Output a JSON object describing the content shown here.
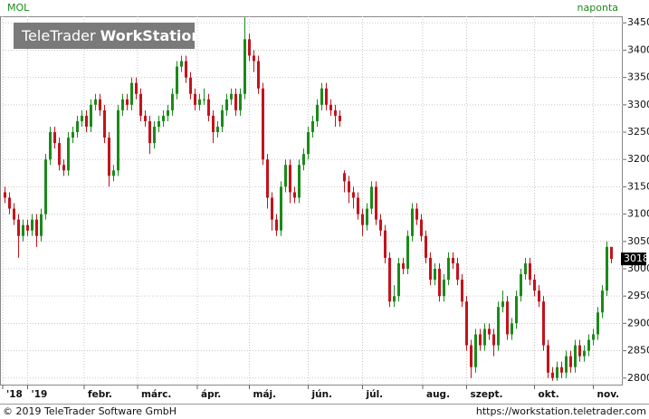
{
  "chart_data": {
    "type": "candlestick",
    "title": "MOL",
    "interval": "naponta",
    "open": [
      3140,
      3130,
      3110,
      3090,
      3060,
      3080,
      3070,
      3090,
      3060,
      3100,
      3200,
      3250,
      3230,
      3190,
      3180,
      3240,
      3250,
      3270,
      3280,
      3260,
      3300,
      3310,
      3290,
      3240,
      3170,
      3180,
      3290,
      3310,
      3300,
      3340,
      3320,
      3280,
      3270,
      3230,
      3260,
      3270,
      3280,
      3290,
      3320,
      3370,
      3380,
      3350,
      3320,
      3300,
      3310,
      3310,
      3280,
      3250,
      3260,
      3290,
      3310,
      3320,
      3290,
      3320,
      3420,
      3390,
      3380,
      3330,
      3200,
      3130,
      3090,
      3070,
      3150,
      3190,
      3140,
      3130,
      3190,
      3210,
      3250,
      3270,
      3300,
      3330,
      3300,
      3290,
      3280,
      3175,
      3160,
      3140,
      3130,
      3100,
      3080,
      3110,
      3150,
      3090,
      3070,
      3020,
      2940,
      2950,
      3010,
      3000,
      3060,
      3110,
      3090,
      3060,
      3020,
      2980,
      3000,
      2950,
      2980,
      3020,
      3010,
      2980,
      2940,
      2860,
      2820,
      2880,
      2860,
      2890,
      2880,
      2860,
      2930,
      2940,
      2880,
      2900,
      2950,
      2990,
      3010,
      2980,
      2960,
      2940,
      2860,
      2810,
      2800,
      2820,
      2810,
      2840,
      2820,
      2860,
      2840,
      2850,
      2870,
      2880,
      2920,
      2960,
      3040
    ],
    "high": [
      3150,
      3140,
      3120,
      3100,
      3090,
      3090,
      3100,
      3100,
      3110,
      3210,
      3260,
      3260,
      3240,
      3200,
      3250,
      3260,
      3280,
      3290,
      3290,
      3310,
      3320,
      3320,
      3300,
      3250,
      3190,
      3300,
      3320,
      3320,
      3350,
      3350,
      3330,
      3290,
      3280,
      3270,
      3280,
      3290,
      3300,
      3330,
      3380,
      3390,
      3390,
      3360,
      3330,
      3320,
      3330,
      3320,
      3290,
      3270,
      3300,
      3320,
      3330,
      3330,
      3330,
      3460,
      3430,
      3400,
      3390,
      3340,
      3210,
      3140,
      3100,
      3160,
      3200,
      3200,
      3150,
      3200,
      3220,
      3260,
      3280,
      3310,
      3340,
      3340,
      3310,
      3300,
      3290,
      3180,
      3170,
      3150,
      3140,
      3110,
      3120,
      3160,
      3160,
      3100,
      3080,
      3030,
      2970,
      3020,
      3020,
      3070,
      3120,
      3120,
      3100,
      3070,
      3030,
      3010,
      3010,
      2990,
      3030,
      3030,
      3020,
      2990,
      2950,
      2870,
      2890,
      2890,
      2900,
      2900,
      2890,
      2940,
      2960,
      2950,
      2910,
      2960,
      3000,
      3020,
      3020,
      2990,
      2970,
      2950,
      2870,
      2820,
      2830,
      2830,
      2850,
      2850,
      2870,
      2870,
      2860,
      2880,
      2890,
      2930,
      2970,
      3050,
      3040
    ],
    "low": [
      3120,
      3100,
      3080,
      3020,
      3050,
      3060,
      3060,
      3040,
      3050,
      3090,
      3190,
      3220,
      3180,
      3170,
      3170,
      3230,
      3240,
      3260,
      3250,
      3250,
      3290,
      3280,
      3230,
      3150,
      3160,
      3170,
      3280,
      3290,
      3290,
      3310,
      3270,
      3260,
      3210,
      3220,
      3250,
      3260,
      3270,
      3280,
      3310,
      3360,
      3340,
      3310,
      3290,
      3290,
      3300,
      3270,
      3230,
      3240,
      3250,
      3280,
      3300,
      3280,
      3280,
      3310,
      3380,
      3360,
      3320,
      3190,
      3110,
      3070,
      3060,
      3060,
      3140,
      3120,
      3120,
      3120,
      3180,
      3200,
      3240,
      3260,
      3290,
      3290,
      3280,
      3260,
      3260,
      3140,
      3120,
      3110,
      3090,
      3060,
      3070,
      3100,
      3080,
      3060,
      3010,
      2930,
      2930,
      2940,
      2990,
      2990,
      3050,
      3080,
      3050,
      3010,
      2970,
      2970,
      2940,
      2940,
      2970,
      3000,
      2970,
      2930,
      2850,
      2800,
      2810,
      2850,
      2850,
      2870,
      2840,
      2850,
      2920,
      2870,
      2870,
      2890,
      2940,
      2980,
      2970,
      2950,
      2930,
      2850,
      2800,
      2795,
      2795,
      2800,
      2800,
      2810,
      2810,
      2830,
      2830,
      2840,
      2860,
      2870,
      2910,
      2950,
      3010
    ],
    "close": [
      3130,
      3110,
      3090,
      3060,
      3080,
      3070,
      3090,
      3060,
      3100,
      3200,
      3250,
      3230,
      3190,
      3180,
      3240,
      3250,
      3270,
      3280,
      3260,
      3300,
      3310,
      3290,
      3240,
      3170,
      3180,
      3290,
      3310,
      3300,
      3340,
      3320,
      3280,
      3270,
      3230,
      3260,
      3270,
      3280,
      3290,
      3320,
      3370,
      3380,
      3350,
      3320,
      3300,
      3310,
      3310,
      3280,
      3250,
      3260,
      3290,
      3310,
      3320,
      3290,
      3320,
      3420,
      3390,
      3380,
      3330,
      3200,
      3130,
      3090,
      3070,
      3150,
      3190,
      3140,
      3130,
      3190,
      3210,
      3250,
      3270,
      3300,
      3330,
      3300,
      3290,
      3280,
      3270,
      3160,
      3140,
      3130,
      3100,
      3080,
      3110,
      3150,
      3090,
      3070,
      3020,
      2940,
      2950,
      3010,
      3000,
      3060,
      3110,
      3090,
      3060,
      3020,
      2980,
      3000,
      2950,
      2980,
      3020,
      3010,
      2980,
      2940,
      2860,
      2820,
      2880,
      2860,
      2890,
      2880,
      2860,
      2930,
      2940,
      2880,
      2900,
      2950,
      2990,
      3010,
      2980,
      2960,
      2940,
      2860,
      2810,
      2800,
      2820,
      2810,
      2840,
      2820,
      2860,
      2840,
      2850,
      2870,
      2880,
      2920,
      2960,
      3040,
      3018
    ],
    "up_color": "#1b8a1b",
    "down_color": "#c4131c",
    "xlim": [
      -0.5,
      136.5
    ],
    "xticks": [
      {
        "value": -0.5,
        "label": "'18"
      },
      {
        "value": 5,
        "label": "'19"
      },
      {
        "value": 17.5,
        "label": "febr."
      },
      {
        "value": 29.3,
        "label": "márc."
      },
      {
        "value": 42.5,
        "label": "ápr."
      },
      {
        "value": 54,
        "label": "máj."
      },
      {
        "value": 67,
        "label": "jún."
      },
      {
        "value": 79,
        "label": "júl."
      },
      {
        "value": 92.3,
        "label": "aug."
      },
      {
        "value": 102,
        "label": "szept."
      },
      {
        "value": 117,
        "label": "okt."
      },
      {
        "value": 130,
        "label": "nov."
      }
    ],
    "ylim": [
      2788,
      3462
    ],
    "yticks": [
      2800,
      2850,
      2900,
      2950,
      3000,
      3050,
      3100,
      3150,
      3200,
      3250,
      3300,
      3350,
      3400,
      3450
    ],
    "grid": true
  },
  "watermark": {
    "brand": "TeleTrader",
    "product": "WorkStation"
  },
  "footer": {
    "copyright": "© 2019 TeleTrader Software GmbH",
    "url": "https://workstation.teletrader.com"
  }
}
